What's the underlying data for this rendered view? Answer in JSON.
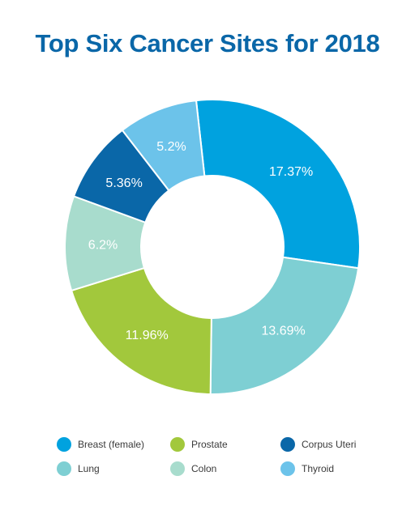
{
  "title": "Top Six Cancer Sites for 2018",
  "colors": {
    "title": "#0a67a8"
  },
  "chart_data": {
    "type": "pie",
    "title": "Top Six Cancer Sites for 2018",
    "series": [
      {
        "name": "Breast (female)",
        "value": 17.37,
        "label": "17.37%",
        "color": "#00a2df"
      },
      {
        "name": "Lung",
        "value": 13.69,
        "label": "13.69%",
        "color": "#7ecfd3"
      },
      {
        "name": "Prostate",
        "value": 11.96,
        "label": "11.96%",
        "color": "#a2c83c"
      },
      {
        "name": "Colon",
        "value": 6.2,
        "label": "6.2%",
        "color": "#a8dccd"
      },
      {
        "name": "Corpus Uteri",
        "value": 5.36,
        "label": "5.36%",
        "color": "#0a67a8"
      },
      {
        "name": "Thyroid",
        "value": 5.2,
        "label": "5.2%",
        "color": "#6cc3ea"
      }
    ],
    "legend_position": "bottom",
    "donut": true
  }
}
